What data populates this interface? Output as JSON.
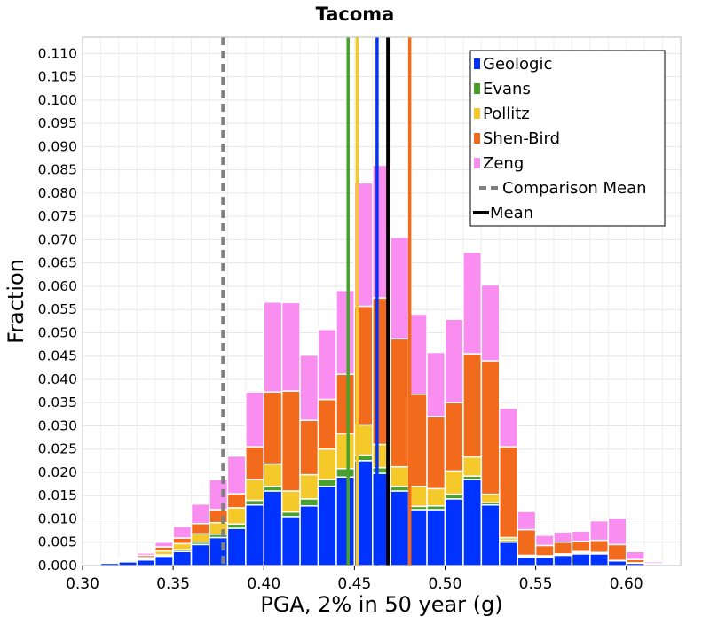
{
  "chart_data": {
    "type": "bar",
    "title": "Tacoma",
    "xlabel": "PGA, 2% in 50 year (g)",
    "ylabel": "Fraction",
    "xlim": [
      0.3,
      0.63
    ],
    "ylim": [
      0.0,
      0.1135
    ],
    "stacked": true,
    "grid": true,
    "legend_position": "top-right",
    "x_ticks": [
      "0.30",
      "0.35",
      "0.40",
      "0.45",
      "0.50",
      "0.55",
      "0.60"
    ],
    "y_ticks": [
      "0.000",
      "0.005",
      "0.010",
      "0.015",
      "0.020",
      "0.025",
      "0.030",
      "0.035",
      "0.040",
      "0.045",
      "0.050",
      "0.055",
      "0.060",
      "0.065",
      "0.070",
      "0.075",
      "0.080",
      "0.085",
      "0.090",
      "0.095",
      "0.100",
      "0.105",
      "0.110"
    ],
    "bins": [
      0.315,
      0.325,
      0.335,
      0.345,
      0.355,
      0.365,
      0.375,
      0.385,
      0.395,
      0.405,
      0.415,
      0.425,
      0.435,
      0.445,
      0.455,
      0.465,
      0.475,
      0.485,
      0.495,
      0.505,
      0.515,
      0.525,
      0.535,
      0.545,
      0.555,
      0.565,
      0.575,
      0.585,
      0.595,
      0.605,
      0.615
    ],
    "bin_width": 0.01,
    "series": [
      {
        "name": "Geologic",
        "color": "#0033ff",
        "values": [
          0.0005,
          0.0008,
          0.0012,
          0.002,
          0.003,
          0.0045,
          0.006,
          0.008,
          0.013,
          0.016,
          0.0105,
          0.0128,
          0.017,
          0.019,
          0.0225,
          0.0198,
          0.016,
          0.012,
          0.012,
          0.0143,
          0.0185,
          0.013,
          0.005,
          0.0018,
          0.0018,
          0.0022,
          0.0025,
          0.0025,
          0.001,
          0.0005,
          0.0002
        ]
      },
      {
        "name": "Evans",
        "color": "#4aa02c",
        "values": [
          0.0,
          0.0001,
          0.0002,
          0.0003,
          0.0004,
          0.0005,
          0.0007,
          0.0009,
          0.001,
          0.001,
          0.001,
          0.0015,
          0.0015,
          0.0018,
          0.0012,
          0.0012,
          0.001,
          0.0007,
          0.0008,
          0.001,
          0.0007,
          0.0005,
          0.0004,
          0.0002,
          0.0002,
          0.0002,
          0.0003,
          0.0002,
          0.0001,
          0.0001,
          0.0
        ]
      },
      {
        "name": "Pollitz",
        "color": "#f5c92a",
        "values": [
          0.0001,
          0.0002,
          0.0003,
          0.0008,
          0.0013,
          0.0018,
          0.0025,
          0.0035,
          0.0045,
          0.0048,
          0.0045,
          0.0052,
          0.0065,
          0.0075,
          0.0065,
          0.005,
          0.0042,
          0.0043,
          0.0037,
          0.005,
          0.0041,
          0.0018,
          0.0006,
          0.0002,
          0.0001,
          0.0001,
          0.0002,
          0.0001,
          0.0,
          0.0,
          0.0
        ]
      },
      {
        "name": "Shen-Bird",
        "color": "#f26a1b",
        "values": [
          0.0001,
          0.0002,
          0.0005,
          0.0009,
          0.0012,
          0.0022,
          0.0028,
          0.003,
          0.007,
          0.0155,
          0.0215,
          0.0117,
          0.0107,
          0.0128,
          0.0255,
          0.0315,
          0.0275,
          0.0198,
          0.0155,
          0.0147,
          0.0222,
          0.0287,
          0.0195,
          0.0055,
          0.0022,
          0.0025,
          0.0022,
          0.0026,
          0.0034,
          0.0007,
          0.0002
        ]
      },
      {
        "name": "Zeng",
        "color": "#f98ef0",
        "values": [
          0.0,
          0.0002,
          0.0005,
          0.001,
          0.0025,
          0.0042,
          0.0065,
          0.0081,
          0.0118,
          0.0193,
          0.019,
          0.014,
          0.015,
          0.018,
          0.0265,
          0.0285,
          0.0218,
          0.0172,
          0.0138,
          0.0179,
          0.0218,
          0.0163,
          0.0083,
          0.0039,
          0.0022,
          0.0022,
          0.0022,
          0.0042,
          0.0057,
          0.0017,
          0.0004
        ]
      }
    ],
    "mean_lines": [
      {
        "name": "Geologic",
        "x": 0.4625,
        "color": "#0033ff"
      },
      {
        "name": "Evans",
        "x": 0.4465,
        "color": "#4aa02c"
      },
      {
        "name": "Pollitz",
        "x": 0.4515,
        "color": "#f5c92a"
      },
      {
        "name": "Shen-Bird",
        "x": 0.4805,
        "color": "#f26a1b"
      }
    ],
    "mean": {
      "name": "Mean",
      "x": 0.4685,
      "color": "#000000"
    },
    "comparison_mean": {
      "name": "Comparison Mean",
      "x": 0.3775,
      "color": "#808080"
    },
    "legend": [
      "Geologic",
      "Evans",
      "Pollitz",
      "Shen-Bird",
      "Zeng",
      "Comparison Mean",
      "Mean"
    ]
  }
}
